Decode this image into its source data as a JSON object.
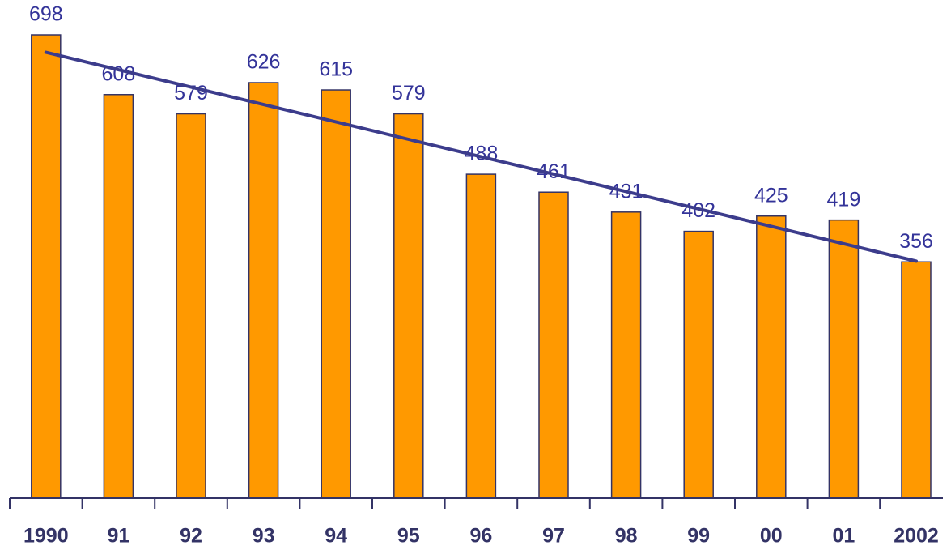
{
  "chart_data": {
    "type": "bar",
    "categories": [
      "1990",
      "91",
      "92",
      "93",
      "94",
      "95",
      "96",
      "97",
      "98",
      "99",
      "00",
      "01",
      "2002"
    ],
    "values": [
      698,
      608,
      579,
      626,
      615,
      579,
      488,
      461,
      431,
      402,
      425,
      419,
      356
    ],
    "color": "#ff9900",
    "trend_line": true,
    "trend_color": "#3c3c8c",
    "ylim": [
      0,
      750
    ]
  }
}
